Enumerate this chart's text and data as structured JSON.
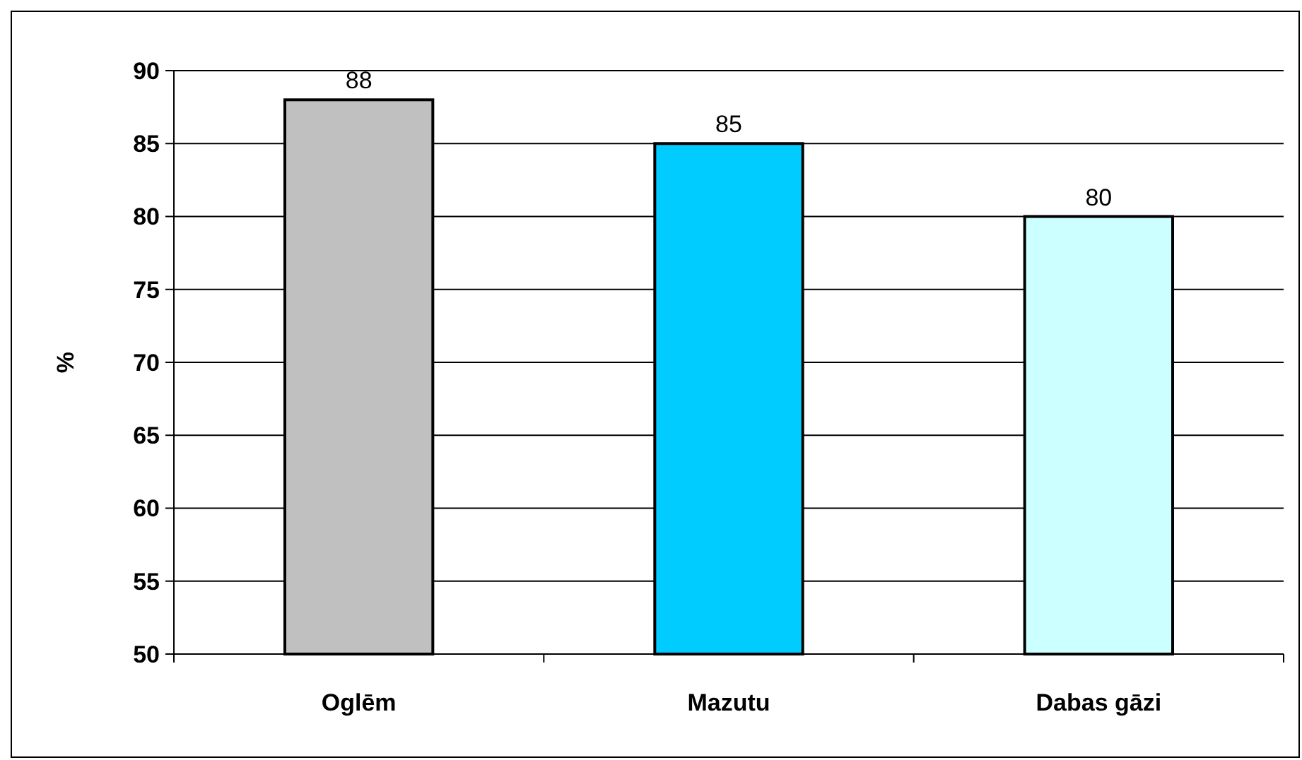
{
  "chart_data": {
    "type": "bar",
    "ylabel": "%",
    "categories": [
      "Oglēm",
      "Mazutu",
      "Dabas gāzi"
    ],
    "values": [
      88,
      85,
      80
    ],
    "colors": [
      "#c0c0c0",
      "#00ccff",
      "#ccffff"
    ],
    "ylim": [
      50,
      90
    ],
    "yticks": [
      50,
      55,
      60,
      65,
      70,
      75,
      80,
      85,
      90
    ],
    "grid": "y",
    "data_labels": true
  }
}
